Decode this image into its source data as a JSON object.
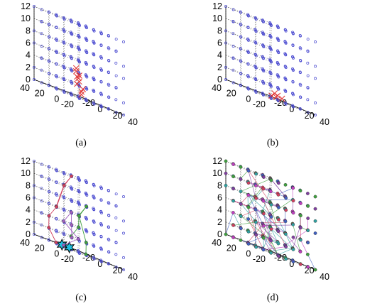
{
  "chart_data": [
    {
      "type": "scatter",
      "projection": "3d",
      "caption": "(a)",
      "zticks": [
        "0",
        "2",
        "4",
        "6",
        "8",
        "10",
        "12"
      ],
      "yticks": [
        "40",
        "20",
        "0",
        "-20"
      ],
      "xticks": [
        "-20",
        "0",
        "20",
        "40"
      ],
      "xlim": [
        -20,
        40
      ],
      "ylim": [
        -20,
        40
      ],
      "zlim": [
        0,
        12
      ],
      "grid": true,
      "series": [
        {
          "marker": "circle",
          "color": "#4a4ad0",
          "layout": "lattice",
          "x_values": [
            -20,
            -10,
            0,
            10,
            20,
            30,
            40
          ],
          "y_values": [
            -20,
            -10,
            0,
            10,
            20,
            30,
            40
          ],
          "z_values": [
            0,
            2,
            4,
            6,
            8,
            10,
            12
          ]
        },
        {
          "marker": "x",
          "color": "#e03030",
          "points": [
            [
              -5,
              -6,
              2.5
            ],
            [
              -3,
              -4,
              3.5
            ],
            [
              -6,
              -3,
              4.5
            ],
            [
              -2,
              -8,
              1.5
            ],
            [
              -7,
              -7,
              3.0
            ],
            [
              -4,
              -2,
              2.0
            ],
            [
              -8,
              -5,
              4.0
            ],
            [
              -1,
              -5,
              1.0
            ],
            [
              -5,
              -9,
              0.5
            ],
            [
              -3,
              -1,
              3.2
            ]
          ]
        }
      ]
    },
    {
      "type": "scatter",
      "projection": "3d",
      "caption": "(b)",
      "zticks": [
        "0",
        "2",
        "4",
        "6",
        "8",
        "10",
        "12"
      ],
      "yticks": [
        "40",
        "20",
        "0",
        "-20"
      ],
      "xticks": [
        "-20",
        "0",
        "20",
        "40"
      ],
      "xlim": [
        -20,
        40
      ],
      "ylim": [
        -20,
        40
      ],
      "zlim": [
        0,
        12
      ],
      "grid": true,
      "series": [
        {
          "marker": "circle",
          "color": "#4a4ad0",
          "layout": "lattice",
          "x_values": [
            -20,
            -10,
            0,
            10,
            20,
            30,
            40
          ],
          "y_values": [
            -20,
            -10,
            0,
            10,
            20,
            30,
            40
          ],
          "z_values": [
            0,
            2,
            4,
            6,
            8,
            10,
            12
          ]
        },
        {
          "marker": "x",
          "color": "#e03030",
          "points": [
            [
              -6,
              -14,
              0.3
            ],
            [
              -2,
              -12,
              0.6
            ],
            [
              -9,
              -11,
              0.2
            ],
            [
              0,
              -16,
              0.4
            ],
            [
              -4,
              -10,
              0.8
            ]
          ]
        }
      ]
    },
    {
      "type": "scatter",
      "projection": "3d",
      "caption": "(c)",
      "zticks": [
        "0",
        "2",
        "4",
        "6",
        "8",
        "10",
        "12"
      ],
      "yticks": [
        "40",
        "20",
        "0",
        "-20"
      ],
      "xticks": [
        "-20",
        "0",
        "20",
        "40"
      ],
      "xlim": [
        -20,
        40
      ],
      "ylim": [
        -20,
        40
      ],
      "zlim": [
        0,
        12
      ],
      "grid": true,
      "series": [
        {
          "marker": "circle",
          "color": "#4a4ad0",
          "layout": "lattice",
          "x_values": [
            -20,
            -10,
            0,
            10,
            20,
            30,
            40
          ],
          "y_values": [
            -20,
            -10,
            0,
            10,
            20,
            30,
            40
          ],
          "z_values": [
            0,
            2,
            4,
            6,
            8,
            10,
            12
          ]
        },
        {
          "marker": "star",
          "color": "#20c0e0",
          "points": [
            [
              -20,
              -8,
              0
            ],
            [
              -20,
              2,
              0
            ]
          ]
        },
        {
          "marker": "path",
          "color": "#d04060",
          "points": [
            [
              -10,
              20,
              6
            ],
            [
              0,
              20,
              10
            ],
            [
              10,
              20,
              12
            ],
            [
              10,
              30,
              10
            ],
            [
              0,
              30,
              6
            ],
            [
              -10,
              30,
              4
            ],
            [
              -20,
              20,
              2
            ],
            [
              -20,
              10,
              0
            ]
          ]
        },
        {
          "marker": "path",
          "color": "#40a040",
          "points": [
            [
              -10,
              0,
              2
            ],
            [
              0,
              0,
              4
            ],
            [
              10,
              10,
              6
            ],
            [
              20,
              10,
              8
            ],
            [
              20,
              20,
              6
            ],
            [
              10,
              0,
              2
            ],
            [
              0,
              -10,
              0
            ]
          ]
        },
        {
          "marker": "path",
          "color": "#a060c0",
          "points": [
            [
              -20,
              0,
              0
            ],
            [
              -10,
              -10,
              2
            ],
            [
              -10,
              10,
              4
            ],
            [
              0,
              10,
              6
            ],
            [
              10,
              20,
              4
            ],
            [
              20,
              30,
              2
            ]
          ]
        }
      ]
    },
    {
      "type": "scatter",
      "projection": "3d",
      "caption": "(d)",
      "zticks": [
        "0",
        "2",
        "4",
        "6",
        "8",
        "10",
        "12"
      ],
      "yticks": [
        "40",
        "20",
        "0",
        "-20"
      ],
      "xticks": [
        "-20",
        "0",
        "20",
        "40"
      ],
      "xlim": [
        -20,
        40
      ],
      "ylim": [
        -20,
        40
      ],
      "zlim": [
        0,
        12
      ],
      "grid": true,
      "series": [
        {
          "marker": "network",
          "layout": "lattice",
          "x_values": [
            -20,
            -10,
            0,
            10,
            20,
            30,
            40
          ],
          "y_values": [
            -20,
            -10,
            0,
            10,
            20,
            30,
            40
          ],
          "z_values": [
            0,
            2,
            4,
            6,
            8,
            10,
            12
          ],
          "colors": [
            "#40a040",
            "#c040c0",
            "#d04060",
            "#4060c0",
            "#30a0a0",
            "#8040a0"
          ]
        }
      ]
    }
  ]
}
